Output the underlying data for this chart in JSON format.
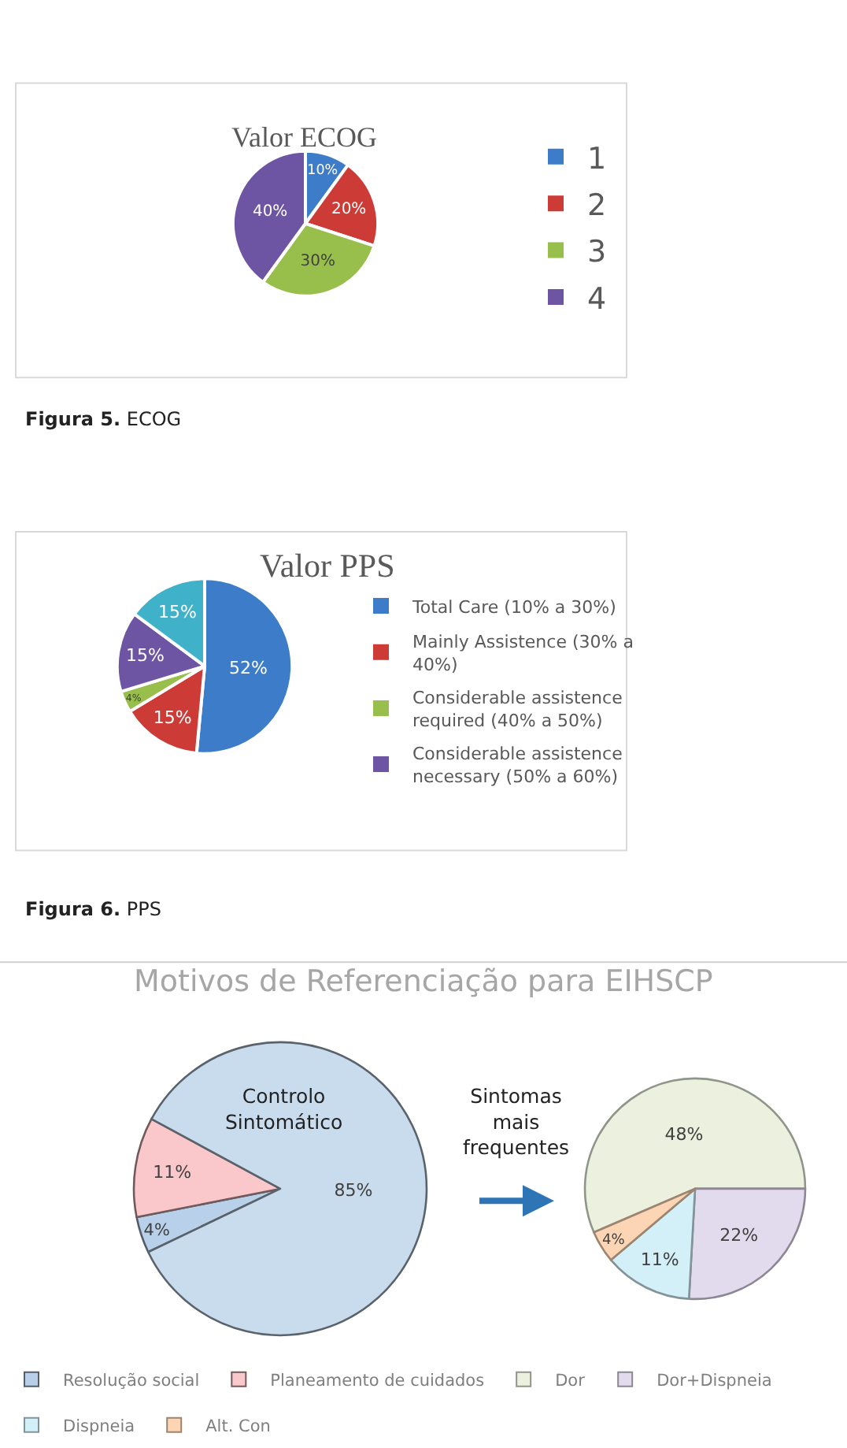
{
  "chart_data": [
    {
      "type": "pie",
      "title": "Valor ECOG",
      "categories": [
        "1",
        "2",
        "3",
        "4"
      ],
      "values": [
        10,
        20,
        30,
        40
      ],
      "value_labels": [
        "10%",
        "20%",
        "30%",
        "40%"
      ],
      "colors": [
        "#3d7cc9",
        "#cc3b36",
        "#98bf4b",
        "#6e55a3"
      ],
      "legend": "right",
      "annotations": [
        "Figura 5. ECOG"
      ]
    },
    {
      "type": "pie",
      "title": "Valor PPS",
      "categories": [
        "Total Care (10% a 30%)",
        "Mainly Assistence (30% a 40%)",
        "Considerable assistence required (40% a 50%)",
        "Considerable assistence necessary (50% a 60%)",
        null
      ],
      "values": [
        52,
        15,
        4,
        15,
        15
      ],
      "value_labels": [
        "52%",
        "15%",
        "4%",
        "15%",
        "15%"
      ],
      "colors": [
        "#3d7cc9",
        "#cc3b36",
        "#98bf4b",
        "#6e55a3",
        "#3fb1c9"
      ],
      "legend": "right",
      "annotations": [
        "Figura 6. PPS"
      ]
    },
    {
      "type": "pie",
      "title": "Motivos de Referenciação para EIHSCP",
      "categories": [
        "Resolução social",
        "Planeamento de cuidados",
        null
      ],
      "values": [
        4,
        11,
        85
      ],
      "value_labels": [
        "4%",
        "11%",
        "85%"
      ],
      "colors": [
        "#b9d0ea",
        "#fac8cb",
        "#c9dcee"
      ],
      "legend": "bottom",
      "annotations": [
        "Controlo Sintomático",
        "Sintomas mais frequentes"
      ]
    },
    {
      "type": "pie",
      "categories": [
        "Dor",
        "Dor+Dispneia",
        "Dispneia",
        "Alt. Con"
      ],
      "values": [
        48,
        22,
        11,
        4
      ],
      "value_labels": [
        "48%",
        "22%",
        "11%",
        "4%"
      ],
      "colors": [
        "#ebf1de",
        "#e2dbee",
        "#d3f0f8",
        "#fcd5b4"
      ],
      "legend": "bottom"
    }
  ]
}
